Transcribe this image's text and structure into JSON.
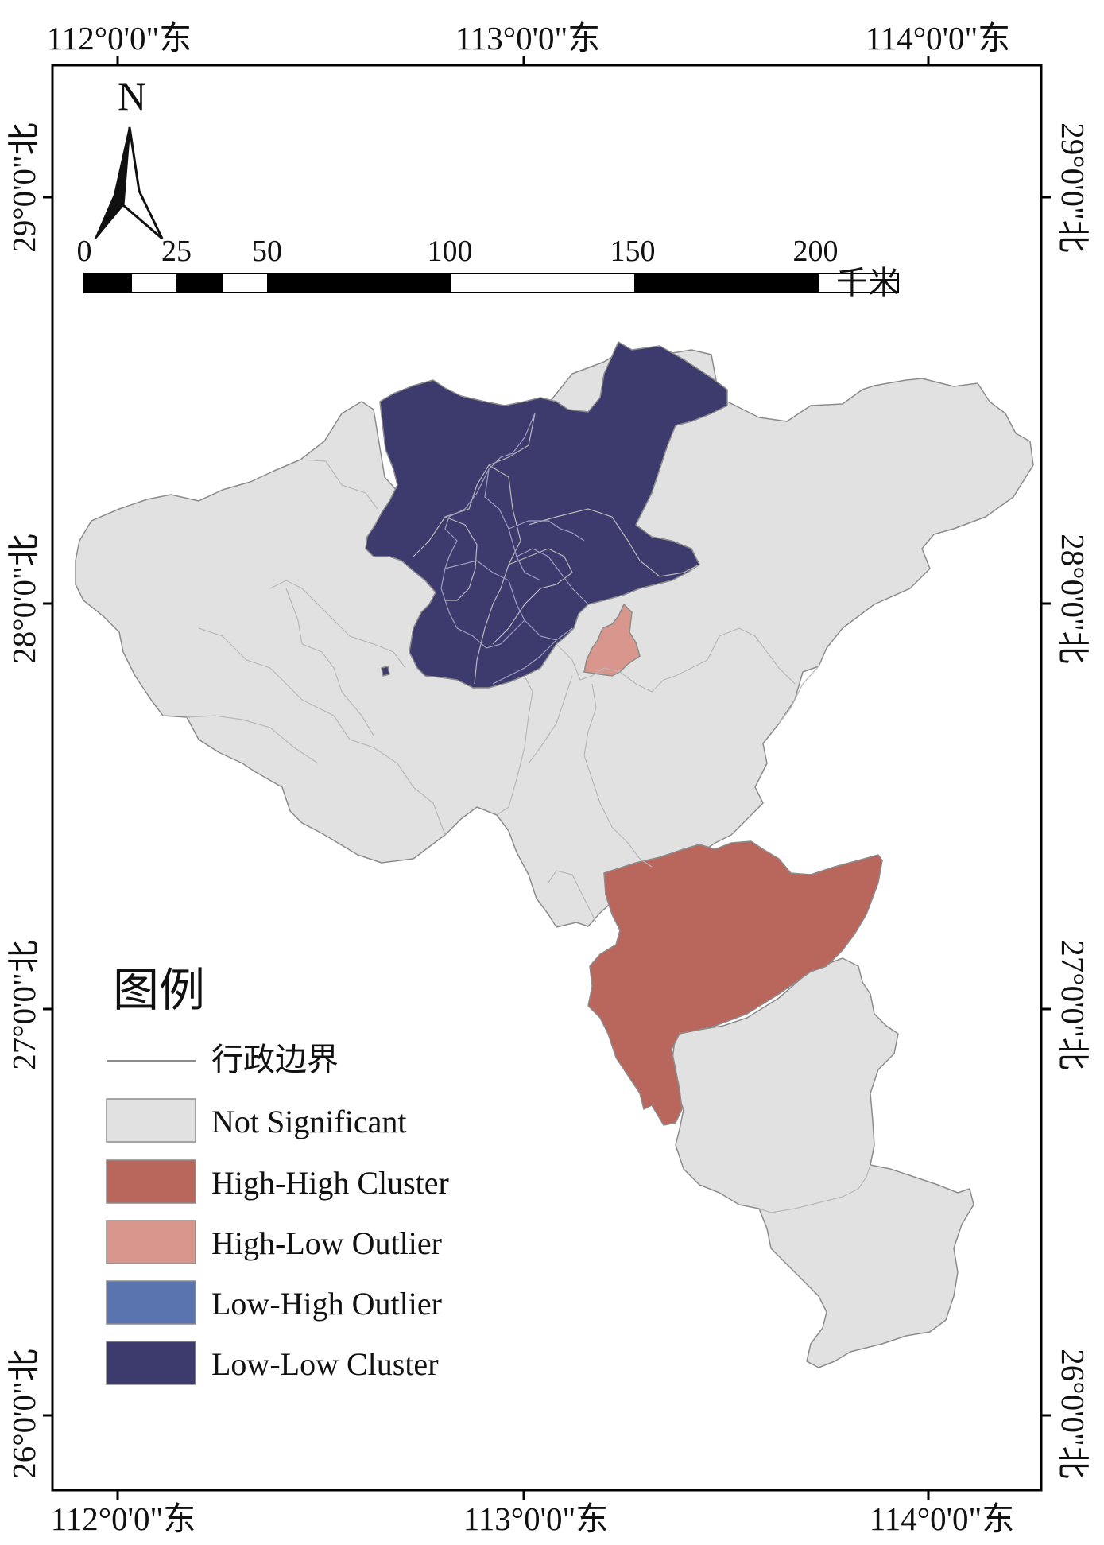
{
  "map": {
    "graticule": {
      "top": [
        "112°0'0\"东",
        "113°0'0\"东",
        "114°0'0\"东"
      ],
      "bottom": [
        "112°0'0\"东",
        "113°0'0\"东",
        "114°0'0\"东"
      ],
      "left": [
        "29°0'0\"北",
        "28°0'0\"北",
        "27°0'0\"北",
        "26°0'0\"北"
      ],
      "right": [
        "29°0'0\"北",
        "28°0'0\"北",
        "27°0'0\"北",
        "26°0'0\"北"
      ]
    },
    "north_arrow": {
      "label": "N"
    },
    "scale_bar": {
      "ticks": [
        "0",
        "25",
        "50",
        "100",
        "150",
        "200"
      ],
      "unit": "千米"
    },
    "colors": {
      "not_significant": "#e1e1e1",
      "high_high": "#b9665d",
      "high_low": "#d8968d",
      "low_high": "#5a74b0",
      "low_low": "#3d3a6e",
      "boundary": "#8c8c8c"
    },
    "legend": {
      "title": "图例",
      "boundary_label": "行政边界",
      "items": [
        {
          "label": "Not Significant",
          "color": "#e1e1e1"
        },
        {
          "label": "High-High Cluster",
          "color": "#b9665d"
        },
        {
          "label": "High-Low Outlier",
          "color": "#d8968d"
        },
        {
          "label": "Low-High Outlier",
          "color": "#5a74b0"
        },
        {
          "label": "Low-Low Cluster",
          "color": "#3d3a6e"
        }
      ]
    }
  }
}
